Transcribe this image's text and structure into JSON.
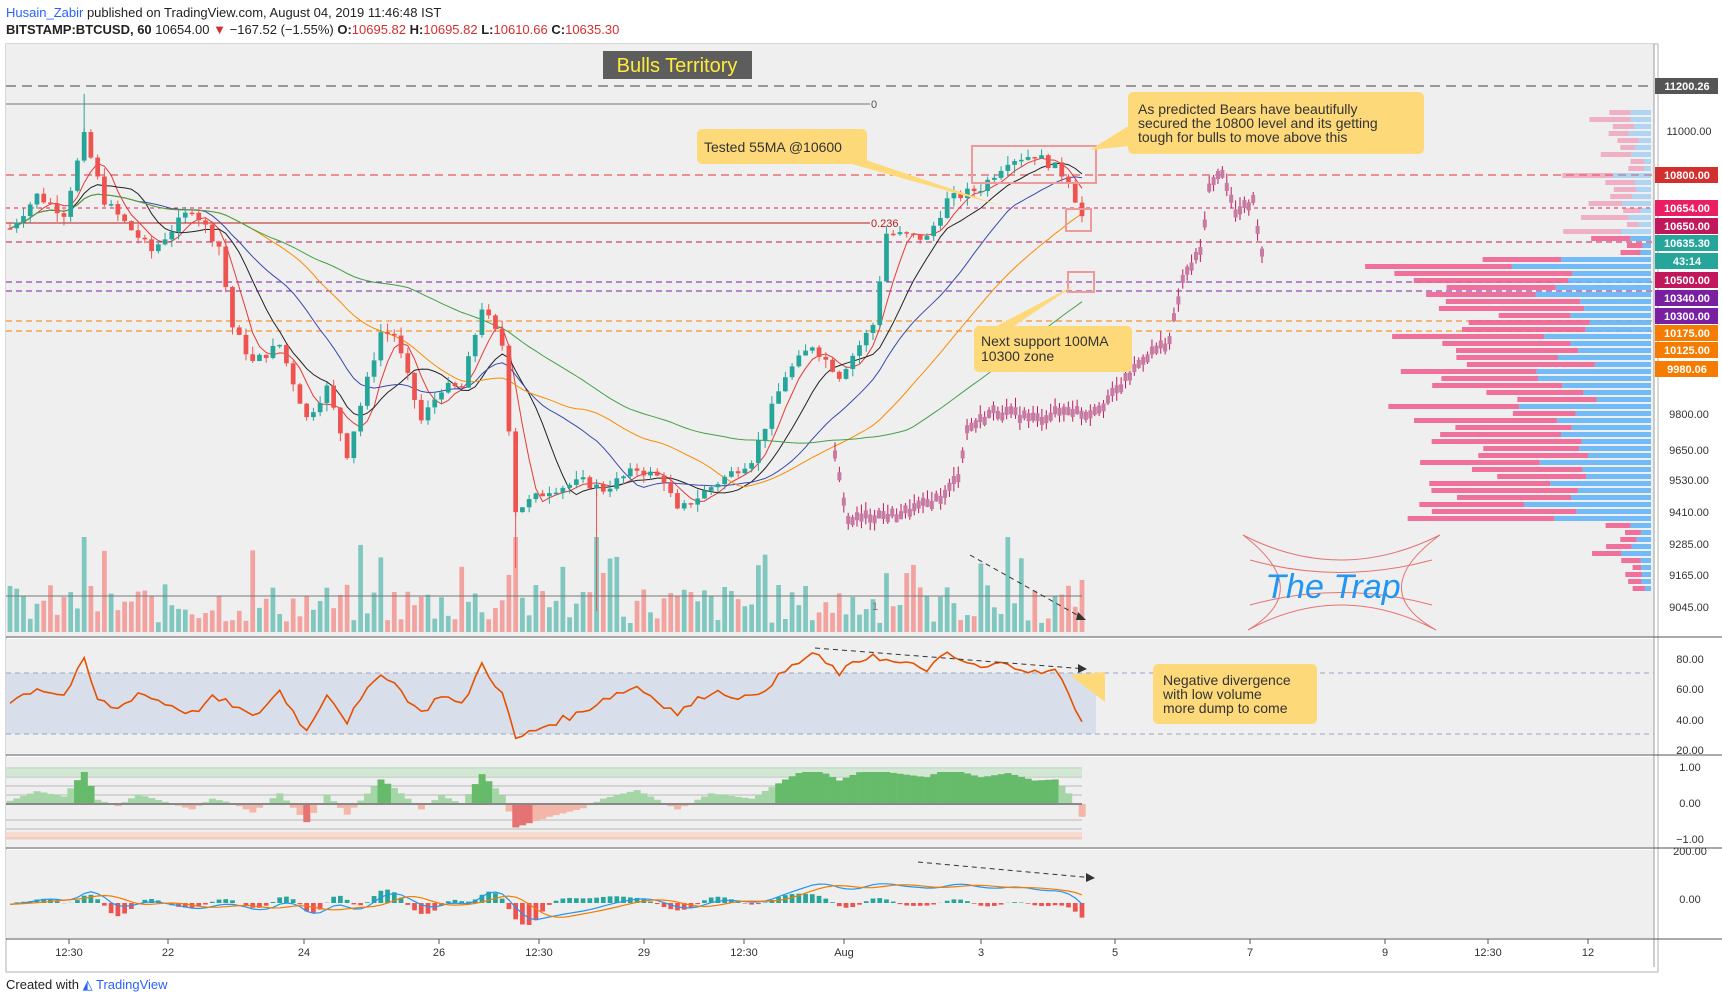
{
  "header": {
    "author": "Husain_Zabir",
    "published": "published on TradingView.com, August 04, 2019 11:46:48 IST",
    "symbol": "BITSTAMP:BTCUSD, 60",
    "last": "10654.00",
    "change": "−167.52 (−1.55%)",
    "o_label": "O:",
    "o_val": "10695.82",
    "h_label": "H:",
    "h_val": "10695.82",
    "l_label": "L:",
    "l_val": "10610.66",
    "c_label": "C:",
    "c_val": "10635.30"
  },
  "footer": {
    "created_with": "Created with",
    "brand": "TradingView"
  },
  "colors": {
    "bull": "#26a69a",
    "bear": "#ef5350",
    "pink": "#c2185b",
    "blue": "#2196f3",
    "orange": "#f57c00",
    "rsi": "#e65100",
    "note": "#fdd97a"
  },
  "chart_data": {
    "type": "candlestick",
    "title": "",
    "x_ticks": [
      "12:30",
      "22",
      "24",
      "26",
      "12:30",
      "29",
      "12:30",
      "Aug",
      "3",
      "5",
      "7",
      "9",
      "12:30",
      "12"
    ],
    "price_ticks": [
      "11000.00",
      "9800.00",
      "9650.00",
      "9530.00",
      "9410.00",
      "9285.00",
      "9165.00",
      "9045.00"
    ],
    "price_labels": [
      {
        "text": "11200.26",
        "color": "#555555"
      },
      {
        "text": "10800.00",
        "color": "#d32f2f"
      },
      {
        "text": "10654.00",
        "color": "#e91e63"
      },
      {
        "text": "10650.00",
        "color": "#c2185b"
      },
      {
        "text": "10635.30",
        "color": "#26a69a"
      },
      {
        "text": "43:14",
        "color": "#26a69a"
      },
      {
        "text": "10500.00",
        "color": "#c2185b"
      },
      {
        "text": "10340.00",
        "color": "#7b1fa2"
      },
      {
        "text": "10300.00",
        "color": "#7b1fa2"
      },
      {
        "text": "10175.00",
        "color": "#f57c00"
      },
      {
        "text": "10125.00",
        "color": "#f57c00"
      },
      {
        "text": "9980.06",
        "color": "#f57c00"
      }
    ],
    "fib_levels": [
      {
        "label": "0"
      },
      {
        "label": "0.236"
      }
    ],
    "volume_marker": "1",
    "rsi_ticks": [
      "80.00",
      "60.00",
      "40.00",
      "20.00"
    ],
    "osc_ticks": [
      "1.00",
      "0.00",
      "−1.00"
    ],
    "macd_ticks": [
      "200.00",
      "0.00"
    ],
    "annotations": {
      "bulls": "Bulls Territory",
      "tested": "Tested 55MA @10600",
      "bears": [
        "As predicted Bears have beautifully",
        "secured the 10800 level and its getting",
        "tough for bulls to move above this"
      ],
      "support": [
        "Next support 100MA",
        "10300 zone"
      ],
      "divergence": [
        "Negative divergence",
        "with low volume",
        "more dump to come"
      ],
      "trap": "The Trap"
    },
    "price_anchors": [
      [
        0,
        10590
      ],
      [
        4,
        10720
      ],
      [
        8,
        10650
      ],
      [
        11,
        10950
      ],
      [
        14,
        10700
      ],
      [
        16,
        10640
      ],
      [
        21,
        10500
      ],
      [
        27,
        10670
      ],
      [
        31,
        10520
      ],
      [
        33,
        10200
      ],
      [
        36,
        10060
      ],
      [
        40,
        10130
      ],
      [
        44,
        9840
      ],
      [
        47,
        9960
      ],
      [
        50,
        9700
      ],
      [
        55,
        10180
      ],
      [
        57,
        10170
      ],
      [
        61,
        9830
      ],
      [
        64,
        9960
      ],
      [
        67,
        9960
      ],
      [
        70,
        10280
      ],
      [
        73,
        10130
      ],
      [
        75,
        9480
      ],
      [
        80,
        9560
      ],
      [
        85,
        9590
      ],
      [
        88,
        9560
      ],
      [
        93,
        9640
      ],
      [
        97,
        9600
      ],
      [
        99,
        9470
      ],
      [
        104,
        9570
      ],
      [
        110,
        9680
      ],
      [
        115,
        10010
      ],
      [
        119,
        10130
      ],
      [
        123,
        10010
      ],
      [
        128,
        10210
      ],
      [
        130,
        10570
      ],
      [
        136,
        10550
      ],
      [
        139,
        10700
      ],
      [
        144,
        10750
      ],
      [
        148,
        10860
      ],
      [
        152,
        10880
      ],
      [
        155,
        10830
      ],
      [
        157,
        10780
      ],
      [
        159,
        10635
      ]
    ],
    "projection_anchors": [
      [
        0,
        9690
      ],
      [
        3,
        9440
      ],
      [
        9,
        9460
      ],
      [
        14,
        9460
      ],
      [
        20,
        9500
      ],
      [
        25,
        9540
      ],
      [
        28,
        9620
      ],
      [
        30,
        9800
      ],
      [
        36,
        9870
      ],
      [
        41,
        9860
      ],
      [
        46,
        9840
      ],
      [
        53,
        9880
      ],
      [
        57,
        9860
      ],
      [
        61,
        9900
      ],
      [
        65,
        9970
      ],
      [
        70,
        10080
      ],
      [
        76,
        10150
      ],
      [
        79,
        10390
      ],
      [
        83,
        10500
      ],
      [
        85,
        10750
      ],
      [
        88,
        10820
      ],
      [
        91,
        10650
      ],
      [
        95,
        10700
      ],
      [
        97,
        10500
      ]
    ],
    "rsi_anchors": [
      [
        0,
        53
      ],
      [
        4,
        62
      ],
      [
        8,
        57
      ],
      [
        11,
        80
      ],
      [
        13,
        54
      ],
      [
        16,
        48
      ],
      [
        19,
        59
      ],
      [
        23,
        52
      ],
      [
        27,
        45
      ],
      [
        30,
        55
      ],
      [
        33,
        51
      ],
      [
        36,
        42
      ],
      [
        40,
        60
      ],
      [
        44,
        33
      ],
      [
        47,
        59
      ],
      [
        50,
        40
      ],
      [
        55,
        73
      ],
      [
        57,
        65
      ],
      [
        61,
        45
      ],
      [
        64,
        58
      ],
      [
        67,
        50
      ],
      [
        70,
        78
      ],
      [
        73,
        58
      ],
      [
        75,
        28
      ],
      [
        80,
        38
      ],
      [
        85,
        46
      ],
      [
        88,
        55
      ],
      [
        93,
        63
      ],
      [
        97,
        51
      ],
      [
        99,
        45
      ],
      [
        104,
        60
      ],
      [
        110,
        55
      ],
      [
        115,
        73
      ],
      [
        119,
        85
      ],
      [
        123,
        72
      ],
      [
        128,
        85
      ],
      [
        130,
        80
      ],
      [
        136,
        75
      ],
      [
        139,
        84
      ],
      [
        144,
        75
      ],
      [
        148,
        79
      ],
      [
        152,
        72
      ],
      [
        155,
        73
      ],
      [
        157,
        60
      ],
      [
        159,
        38
      ]
    ]
  }
}
